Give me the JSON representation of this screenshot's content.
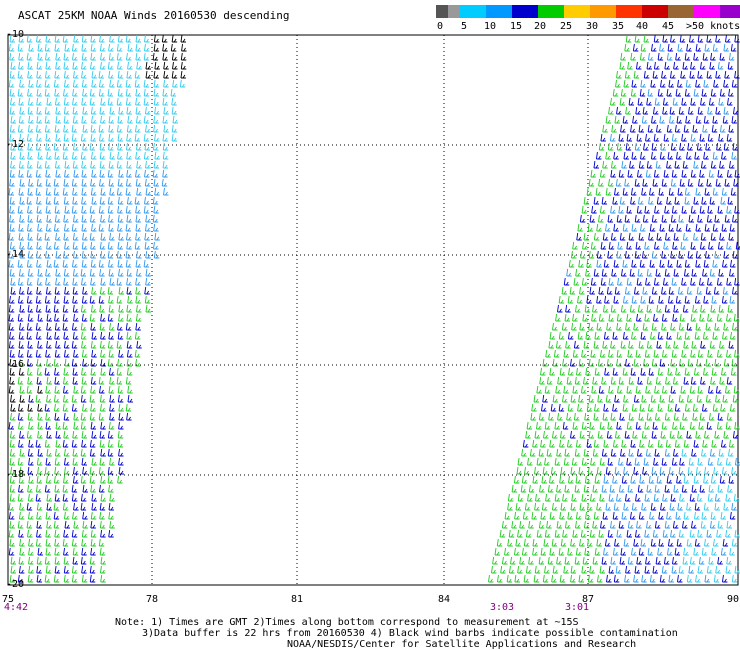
{
  "title": "ASCAT 25KM NOAA Winds 20160530 descending",
  "legend": {
    "ticks": [
      "0",
      "5",
      "10",
      "15",
      "20",
      "25",
      "30",
      "35",
      "40",
      "45",
      ">50 knots"
    ],
    "colors": [
      "#555555",
      "#999999",
      "#00ccff",
      "#0099ff",
      "#0000cc",
      "#00cc00",
      "#ffcc00",
      "#ff9900",
      "#ff3300",
      "#cc0000",
      "#996633",
      "#ff00ff",
      "#9900cc",
      "#330066"
    ]
  },
  "axes": {
    "lat_labels": [
      "-10",
      "-12",
      "-14",
      "-16",
      "-18",
      "-20"
    ],
    "lon_labels": [
      "75",
      "78",
      "81",
      "84",
      "87",
      "90"
    ]
  },
  "times": [
    "4:42",
    "3:03",
    "3:01"
  ],
  "note": {
    "line1": "Note: 1) Times are GMT 2)Times along bottom correspond to measurement at ~15S",
    "line2": "3)Data buffer is 22 hrs from 20160530 4) Black wind barbs indicate possible contamination",
    "line3": "NOAA/NESDIS/Center for Satellite Applications and Research"
  },
  "swath_colors": {
    "cyan": "#33ccee",
    "light_blue": "#3399ee",
    "blue": "#0000cc",
    "green": "#22cc22",
    "black": "#000000"
  }
}
